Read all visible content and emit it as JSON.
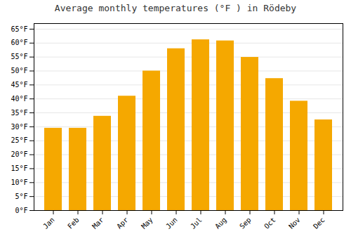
{
  "chart_data": {
    "type": "bar",
    "title": "Average monthly temperatures (°F ) in Rödeby",
    "categories": [
      "Jan",
      "Feb",
      "Mar",
      "Apr",
      "May",
      "Jun",
      "Jul",
      "Aug",
      "Sep",
      "Oct",
      "Nov",
      "Dec"
    ],
    "values": [
      29.5,
      29.5,
      33.8,
      41.0,
      50.0,
      58.0,
      61.2,
      60.8,
      54.9,
      47.3,
      39.2,
      32.5
    ],
    "color": "#F5A800",
    "ylim": [
      0,
      67
    ],
    "yticks": [
      {
        "value": 0,
        "label": "0°F"
      },
      {
        "value": 5,
        "label": "5°F"
      },
      {
        "value": 10,
        "label": "10°F"
      },
      {
        "value": 15,
        "label": "15°F"
      },
      {
        "value": 20,
        "label": "20°F"
      },
      {
        "value": 25,
        "label": "25°F"
      },
      {
        "value": 30,
        "label": "30°F"
      },
      {
        "value": 35,
        "label": "35°F"
      },
      {
        "value": 40,
        "label": "40°F"
      },
      {
        "value": 45,
        "label": "45°F"
      },
      {
        "value": 50,
        "label": "50°F"
      },
      {
        "value": 55,
        "label": "55°F"
      },
      {
        "value": 60,
        "label": "60°F"
      },
      {
        "value": 65,
        "label": "65°F"
      }
    ],
    "grid": true
  }
}
